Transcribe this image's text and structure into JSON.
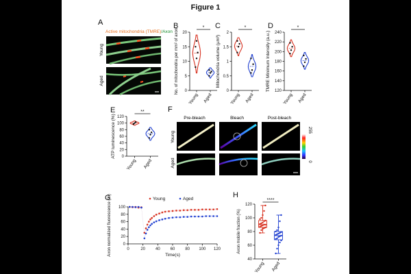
{
  "figure": {
    "title": "Figure 1",
    "colors": {
      "young": "#d7301f",
      "aged": "#1f3fd0",
      "page": "#ffffff",
      "background": "#000000"
    }
  },
  "chart_data": [
    {
      "panel": "A",
      "type": "image",
      "title_parts": [
        "Active mitochondria (TMRE)",
        "/Axon"
      ],
      "row_labels": [
        "Young",
        "Aged"
      ]
    },
    {
      "panel": "B",
      "type": "violin",
      "categories": [
        "Young",
        "Aged"
      ],
      "ylabel": "No. of mitochondria per mm² of axon",
      "ylim": [
        0,
        20
      ],
      "yticks": [
        "0",
        "5",
        "10",
        "15",
        "20"
      ],
      "series": [
        {
          "values": [
            8,
            11,
            13,
            15,
            17
          ]
        },
        {
          "values": [
            5,
            6,
            6.5,
            7
          ]
        }
      ],
      "significance": "*"
    },
    {
      "panel": "C",
      "type": "violin",
      "categories": [
        "Young",
        "Aged"
      ],
      "ylabel": "Mitochondria volume (µm³)",
      "ylim": [
        0,
        2
      ],
      "yticks": [
        "0",
        "0.5",
        "1",
        "1.5",
        "2"
      ],
      "series": [
        {
          "values": [
            1.3,
            1.5,
            1.6,
            1.7
          ]
        },
        {
          "values": [
            0.6,
            0.7,
            0.9,
            1.1
          ]
        }
      ],
      "significance": "*"
    },
    {
      "panel": "D",
      "type": "violin",
      "categories": [
        "Young",
        "Aged"
      ],
      "ylabel": "TMRE Minimum Intensity (a.u.)",
      "ylim": [
        120,
        240
      ],
      "yticks": [
        "120",
        "140",
        "160",
        "180",
        "200",
        "220",
        "240"
      ],
      "series": [
        {
          "values": [
            196,
            203,
            210,
            218
          ]
        },
        {
          "values": [
            170,
            178,
            185,
            192
          ]
        }
      ],
      "significance": "*"
    },
    {
      "panel": "E",
      "type": "violin",
      "categories": [
        "Young",
        "Aged"
      ],
      "ylabel": "ATP luminescence (%)",
      "ylim": [
        0,
        120
      ],
      "yticks": [
        "0",
        "20",
        "40",
        "60",
        "80",
        "100",
        "120"
      ],
      "series": [
        {
          "values": [
            97,
            100,
            103
          ]
        },
        {
          "values": [
            55,
            65,
            72,
            80
          ]
        }
      ],
      "significance": "**"
    },
    {
      "panel": "F",
      "type": "image",
      "column_labels": [
        "Pre-bleach",
        "Bleach",
        "Post-bleach"
      ],
      "row_labels": [
        "Young",
        "Aged"
      ],
      "colorbar": [
        "255",
        "0"
      ]
    },
    {
      "panel": "G",
      "type": "scatter",
      "xlabel": "Time(s)",
      "ylabel": "Axon normalized fluorescence (%)",
      "xlim": [
        0,
        120
      ],
      "ylim": [
        0,
        100
      ],
      "xticks": [
        "0",
        "20",
        "40",
        "60",
        "80",
        "100",
        "120"
      ],
      "yticks": [
        "0",
        "20",
        "40",
        "60",
        "80",
        "100"
      ],
      "legend": "top",
      "series": [
        {
          "name": "Young",
          "x": [
            2,
            6,
            10,
            14,
            18,
            22,
            24,
            26,
            28,
            30,
            32,
            35,
            38,
            42,
            46,
            50,
            55,
            60,
            65,
            70,
            75,
            80,
            85,
            90,
            95,
            100,
            105,
            110,
            115,
            120
          ],
          "y": [
            100,
            99,
            100,
            98,
            99,
            30,
            42,
            52,
            60,
            66,
            70,
            75,
            79,
            82,
            85,
            87,
            88,
            89,
            90,
            90,
            91,
            91,
            92,
            92,
            92,
            93,
            93,
            93,
            93,
            94
          ]
        },
        {
          "name": "Aged",
          "x": [
            2,
            6,
            10,
            14,
            18,
            22,
            24,
            26,
            28,
            30,
            32,
            35,
            38,
            42,
            46,
            50,
            55,
            60,
            65,
            70,
            75,
            80,
            85,
            90,
            95,
            100,
            105,
            110,
            115,
            120
          ],
          "y": [
            100,
            100,
            99,
            100,
            98,
            15,
            28,
            38,
            45,
            50,
            54,
            58,
            61,
            64,
            66,
            68,
            70,
            71,
            72,
            72,
            73,
            73,
            74,
            74,
            74,
            74,
            75,
            75,
            75,
            75
          ]
        }
      ]
    },
    {
      "panel": "H",
      "type": "box",
      "categories": [
        "Young",
        "Aged"
      ],
      "ylabel": "Axon mobile fraction (%)",
      "ylim": [
        40,
        120
      ],
      "yticks": [
        "40",
        "60",
        "80",
        "100",
        "120"
      ],
      "series": [
        {
          "min": 78,
          "q1": 86,
          "median": 90,
          "q3": 96,
          "max": 118,
          "points": [
            78,
            82,
            84,
            85,
            86,
            87,
            88,
            89,
            90,
            90,
            91,
            92,
            93,
            95,
            96,
            98,
            100,
            104,
            110,
            118
          ]
        },
        {
          "min": 48,
          "q1": 68,
          "median": 74,
          "q3": 80,
          "max": 104,
          "points": [
            48,
            55,
            60,
            64,
            67,
            69,
            70,
            72,
            73,
            74,
            75,
            76,
            77,
            78,
            79,
            80,
            82,
            86,
            95,
            104
          ]
        }
      ],
      "significance": "****"
    }
  ]
}
